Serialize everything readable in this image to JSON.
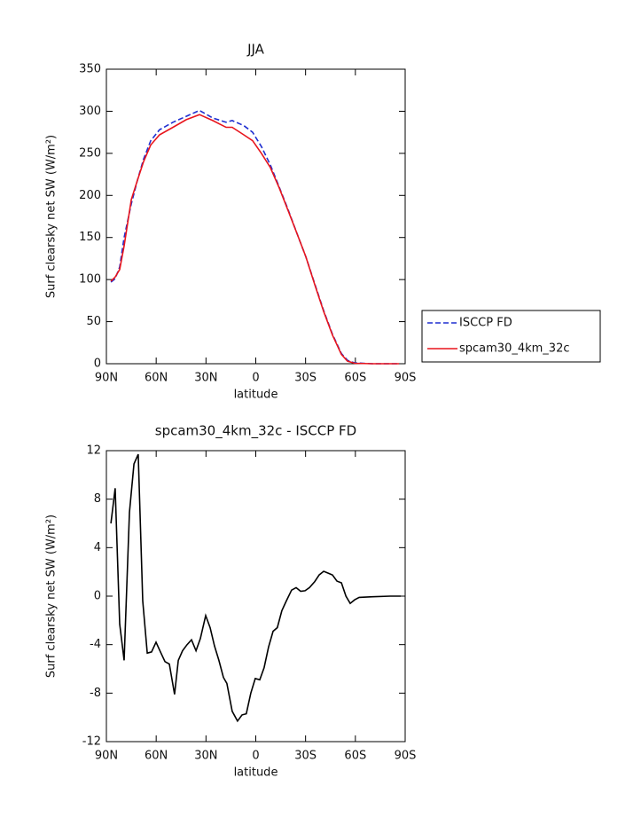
{
  "chart_data": [
    {
      "type": "line",
      "title": "JJA",
      "xlabel": "latitude",
      "ylabel": "Surf clearsky net SW (W/m²)",
      "x": [
        87.3,
        84.7,
        82.0,
        79.3,
        75.0,
        71.3,
        67.6,
        63.3,
        58.0,
        49.9,
        41.9,
        33.9,
        25.9,
        17.9,
        14.2,
        7.2,
        1.9,
        -3.4,
        -8.8,
        -14.1,
        -19.5,
        -24.8,
        -30.2,
        -35.5,
        -40.9,
        -46.2,
        -51.6,
        -55.3,
        -59.6,
        -70.3,
        -86.3
      ],
      "series": [
        {
          "name": "ISCCP FD",
          "color": "#1f2fd0",
          "line_style": "dashed",
          "values": [
            97,
            101,
            115,
            150,
            190,
            218,
            243,
            265,
            278,
            287,
            294,
            301,
            292,
            287,
            289,
            283,
            275,
            258,
            236,
            210,
            183,
            155,
            127,
            95,
            63,
            35,
            12,
            4,
            1,
            0,
            0
          ]
        },
        {
          "name": "spcam30_4km_32c",
          "color": "#e8141c",
          "line_style": "solid",
          "values": [
            98,
            103,
            112,
            140,
            195,
            218,
            240,
            260,
            272,
            281,
            290,
            296,
            289,
            281,
            281,
            272,
            265,
            250,
            233,
            209,
            182,
            155,
            127,
            94,
            62,
            34,
            11,
            3,
            0.5,
            0,
            0
          ]
        }
      ],
      "xlim": [
        90,
        -90
      ],
      "xticks": [
        {
          "value": 90,
          "label": "90N"
        },
        {
          "value": 60,
          "label": "60N"
        },
        {
          "value": 30,
          "label": "30N"
        },
        0,
        {
          "value": -30,
          "label": "30S"
        },
        {
          "value": -60,
          "label": "60S"
        },
        {
          "value": -90,
          "label": "90S"
        }
      ],
      "ylim": [
        0,
        350
      ],
      "yticks": [
        0,
        50,
        100,
        150,
        200,
        250,
        300,
        350
      ],
      "legend": "right"
    },
    {
      "type": "line",
      "title": "spcam30_4km_32c - ISCCP FD",
      "xlabel": "latitude",
      "ylabel": "Surf clearsky net SW (W/m²)",
      "x": [
        87.3,
        84.7,
        82.0,
        79.3,
        76.1,
        73.4,
        70.8,
        68.1,
        65.4,
        62.8,
        60.1,
        57.4,
        54.7,
        52.1,
        48.9,
        46.7,
        44.1,
        41.4,
        38.7,
        36.0,
        33.4,
        30.2,
        27.5,
        24.9,
        22.2,
        19.5,
        17.4,
        14.2,
        11.0,
        8.3,
        5.7,
        3.0,
        0.3,
        -2.4,
        -5.0,
        -7.7,
        -10.4,
        -13.0,
        -15.7,
        -18.4,
        -21.6,
        -24.3,
        -27.0,
        -29.7,
        -32.3,
        -35.5,
        -38.2,
        -40.9,
        -43.5,
        -46.2,
        -48.9,
        -51.6,
        -54.3,
        -56.9,
        -59.6,
        -62.3,
        -70.3,
        -81.0,
        -87.4
      ],
      "series": [
        {
          "name": "spcam30_4km_32c - ISCCP FD",
          "color": "#000000",
          "line_style": "solid",
          "values": [
            6.0,
            8.9,
            -2.3,
            -5.3,
            6.9,
            10.9,
            11.7,
            -0.4,
            -4.7,
            -4.6,
            -3.8,
            -4.6,
            -5.4,
            -5.6,
            -8.1,
            -5.3,
            -4.5,
            -4.0,
            -3.6,
            -4.5,
            -3.5,
            -1.6,
            -2.6,
            -4.1,
            -5.3,
            -6.7,
            -7.2,
            -9.5,
            -10.3,
            -9.8,
            -9.7,
            -8.0,
            -6.8,
            -6.9,
            -5.9,
            -4.2,
            -2.9,
            -2.6,
            -1.2,
            -0.4,
            0.5,
            0.7,
            0.4,
            0.45,
            0.7,
            1.2,
            1.75,
            2.05,
            1.9,
            1.75,
            1.24,
            1.1,
            0,
            -0.6,
            -0.3,
            -0.1,
            -0.05,
            0,
            0
          ]
        }
      ],
      "xlim": [
        90,
        -90
      ],
      "xticks": [
        {
          "value": 90,
          "label": "90N"
        },
        {
          "value": 60,
          "label": "60N"
        },
        {
          "value": 30,
          "label": "30N"
        },
        0,
        {
          "value": -30,
          "label": "30S"
        },
        {
          "value": -60,
          "label": "60S"
        },
        {
          "value": -90,
          "label": "90S"
        }
      ],
      "ylim": [
        -12,
        12
      ],
      "yticks": [
        -12,
        -8,
        -4,
        0,
        4,
        8,
        12
      ]
    }
  ]
}
